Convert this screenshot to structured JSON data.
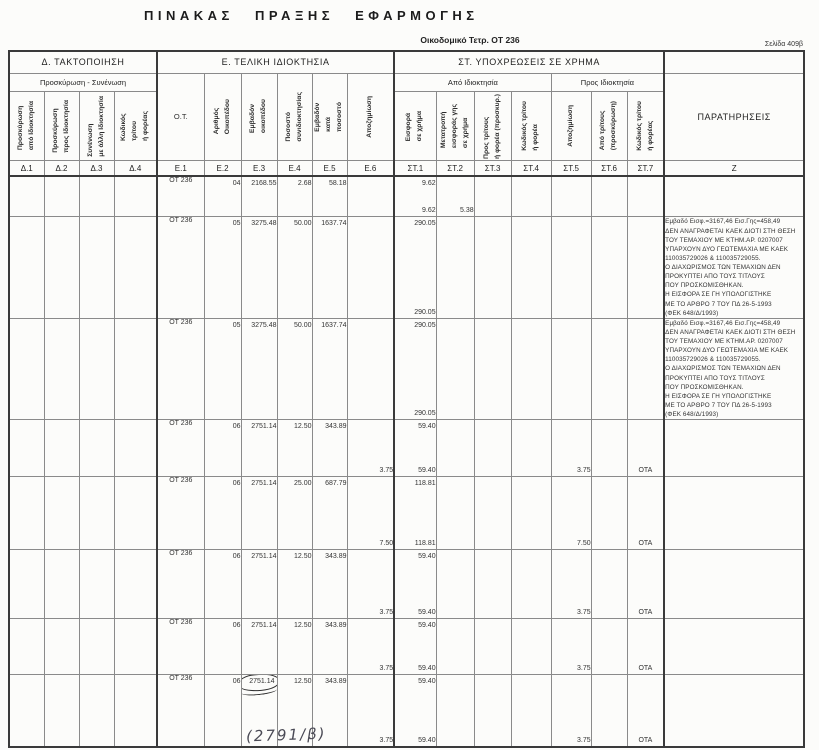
{
  "page": {
    "title": "ΠΙΝΑΚΑΣ ΠΡΑΞΗΣ ΕΦΑΡΜΟΓΗΣ",
    "block_label": "Οικοδομικό Τετρ. ΟΤ 236",
    "page_number": "Σελίδα 409β",
    "handwritten_note": "(2791/β)"
  },
  "table": {
    "sections": {
      "d": {
        "title": "Δ. ΤΑΚΤΟΠΟΙΗΣΗ",
        "subtitle": "Προσκύρωση - Συνένωση"
      },
      "e": {
        "title": "Ε. ΤΕΛΙΚΗ ΙΔΙΟΚΤΗΣΙΑ"
      },
      "st": {
        "title": "ΣΤ. ΥΠΟΧΡΕΩΣΕΙΣ ΣΕ ΧΡΗΜΑ",
        "from": "Από Ιδιοκτησία",
        "to": "Προς Ιδιοκτησία"
      },
      "remarks": {
        "title": "ΠΑΡΑΤΗΡΗΣΕΙΣ",
        "code": "Ζ"
      }
    },
    "columns": {
      "d1": {
        "code": "Δ.1",
        "label": "Προσκύρωση\nαπό Ιδιοκτησία"
      },
      "d2": {
        "code": "Δ.2",
        "label": "Προσκύρωση\nπρος Ιδιοκτησία"
      },
      "d3": {
        "code": "Δ.3",
        "label": "Συνένωση\nμε άλλη Ιδιοκτησία"
      },
      "d4": {
        "code": "Δ.4",
        "label": "Κωδικός\nτρίτου\nή φορέας"
      },
      "e1": {
        "code": "Ε.1",
        "label": "Ο.Τ."
      },
      "e2": {
        "code": "Ε.2",
        "label": "Αριθμός\nΟικοπέδου"
      },
      "e3": {
        "code": "Ε.3",
        "label": "Εμβαδόν\nοικοπέδου"
      },
      "e4": {
        "code": "Ε.4",
        "label": "Ποσοστό\nσυνιδιοκτησίας"
      },
      "e5": {
        "code": "Ε.5",
        "label": "Εμβαδόν\nκατά\nποσοστό"
      },
      "e6": {
        "code": "Ε.6",
        "label": "Αποζημίωση"
      },
      "st1": {
        "code": "ΣΤ.1",
        "label": "Εισφορά\nσε χρήμα"
      },
      "st2": {
        "code": "ΣΤ.2",
        "label": "Μετατροπή\nεισφοράς γης\nσε χρήμα"
      },
      "st3": {
        "code": "ΣΤ.3",
        "label": "Προς τρίτους\nή φορέα (προσκυρ.)"
      },
      "st4": {
        "code": "ΣΤ.4",
        "label": "Κωδικός τρίτου\nή φορέα"
      },
      "st5": {
        "code": "ΣΤ.5",
        "label": "Αποζημίωση"
      },
      "st6": {
        "code": "ΣΤ.6",
        "label": "Από τρίτους\n(προσκύρωση)"
      },
      "st7": {
        "code": "ΣΤ.7",
        "label": "Κωδικός τρίτου\nή φορέας"
      }
    },
    "rows": [
      {
        "ot": "ΟΤ 236",
        "plot": "04",
        "area": "2168.55",
        "pct": "2.68",
        "area_pct": "58.18",
        "st1": "9.62",
        "st1b": "9.62",
        "st2b": "5.38",
        "remarks": ""
      },
      {
        "ot": "ΟΤ 236",
        "plot": "05",
        "area": "3275.48",
        "pct": "50.00",
        "area_pct": "1637.74",
        "st1": "290.05",
        "st1b": "290.05",
        "remarks": "Εμβαδό Εισφ.=3167,46 Εισ.Γης=458,49\nΔΕΝ ΑΝΑΓΡΑΦΕΤΑΙ ΚΑΕΚ ΔΙΟΤΙ ΣΤΗ ΘΕΣΗ\nΤΟΥ ΤΕΜΑΧΙΟΥ ΜΕ ΚΤΗΜ.ΑΡ. 0207007\nΥΠΑΡΧΟΥΝ ΔΥΟ ΓΕΩΤΕΜΑΧΙΑ ΜΕ ΚΑΕΚ\n110035729026 & 110035729055.\nΟ ΔΙΑΧΩΡΙΣΜΟΣ ΤΩΝ ΤΕΜΑΧΙΩΝ ΔΕΝ\nΠΡΟΚΥΠΤΕΙ ΑΠΟ ΤΟΥΣ ΤΙΤΛΟΥΣ\nΠΟΥ ΠΡΟΣΚΟΜΙΣΘΗΚΑΝ.\nΗ ΕΙΣΦΟΡΑ ΣΕ ΓΗ ΥΠΟΛΟΓΙΣΤΗΚΕ\nΜΕ ΤΟ ΑΡΘΡΟ 7 ΤΟΥ ΠΔ 26-5-1993\n(ΦΕΚ 648/Δ/1993)"
      },
      {
        "ot": "ΟΤ 236",
        "plot": "05",
        "area": "3275.48",
        "pct": "50.00",
        "area_pct": "1637.74",
        "st1": "290.05",
        "st1b": "290.05",
        "remarks": "Εμβαδό Εισφ.=3167,46 Εισ.Γης=458,49\nΔΕΝ ΑΝΑΓΡΑΦΕΤΑΙ ΚΑΕΚ ΔΙΟΤΙ ΣΤΗ ΘΕΣΗ\nΤΟΥ ΤΕΜΑΧΙΟΥ ΜΕ ΚΤΗΜ.ΑΡ. 0207007\nΥΠΑΡΧΟΥΝ ΔΥΟ ΓΕΩΤΕΜΑΧΙΑ ΜΕ ΚΑΕΚ\n110035729026 & 110035729055.\nΟ ΔΙΑΧΩΡΙΣΜΟΣ ΤΩΝ ΤΕΜΑΧΙΩΝ ΔΕΝ\nΠΡΟΚΥΠΤΕΙ ΑΠΟ ΤΟΥΣ ΤΙΤΛΟΥΣ\nΠΟΥ ΠΡΟΣΚΟΜΙΣΘΗΚΑΝ.\nΗ ΕΙΣΦΟΡΑ ΣΕ ΓΗ ΥΠΟΛΟΓΙΣΤΗΚΕ\nΜΕ ΤΟ ΑΡΘΡΟ 7 ΤΟΥ ΠΔ 26-5-1993\n(ΦΕΚ 648/Δ/1993)"
      },
      {
        "ot": "ΟΤ 236",
        "plot": "06",
        "area": "2751.14",
        "pct": "12.50",
        "area_pct": "343.89",
        "st1": "59.40",
        "e6b": "3.75",
        "st1b": "59.40",
        "st5b": "3.75",
        "st7b": "ΟΤΑ",
        "remarks": ""
      },
      {
        "ot": "ΟΤ 236",
        "plot": "06",
        "area": "2751.14",
        "pct": "25.00",
        "area_pct": "687.79",
        "st1": "118.81",
        "e6b": "7.50",
        "st1b": "118.81",
        "st5b": "7.50",
        "st7b": "ΟΤΑ",
        "remarks": ""
      },
      {
        "ot": "ΟΤ 236",
        "plot": "06",
        "area": "2751.14",
        "pct": "12.50",
        "area_pct": "343.89",
        "st1": "59.40",
        "e6b": "3.75",
        "st1b": "59.40",
        "st5b": "3.75",
        "st7b": "ΟΤΑ",
        "remarks": ""
      },
      {
        "ot": "ΟΤ 236",
        "plot": "06",
        "area": "2751.14",
        "pct": "12.50",
        "area_pct": "343.89",
        "st1": "59.40",
        "e6b": "3.75",
        "st1b": "59.40",
        "st5b": "3.75",
        "st7b": "ΟΤΑ",
        "remarks": ""
      },
      {
        "ot": "ΟΤ 236",
        "plot": "06",
        "area": "2751.14",
        "pct": "12.50",
        "area_pct": "343.89",
        "st1": "59.40",
        "e6b": "3.75",
        "st1b": "59.40",
        "st5b": "3.75",
        "st7b": "ΟΤΑ",
        "remarks": "",
        "circled": true
      }
    ]
  }
}
